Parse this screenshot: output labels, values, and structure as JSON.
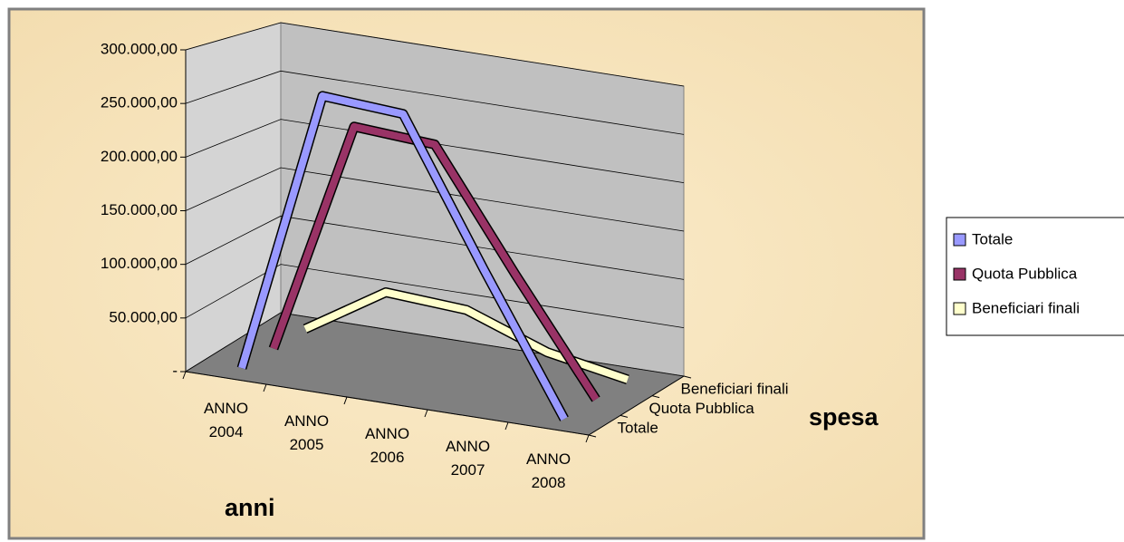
{
  "chart_data": {
    "type": "line3d",
    "x_axis_label": "anni",
    "z_axis_label": "spesa",
    "categories": [
      "ANNO 2004",
      "ANNO 2005",
      "ANNO 2006",
      "ANNO 2007",
      "ANNO 2008"
    ],
    "series": [
      {
        "name": "Totale",
        "color": "#9999ff",
        "values": [
          0,
          270000,
          265000,
          130000,
          0
        ]
      },
      {
        "name": "Quota Pubblica",
        "color": "#993366",
        "values": [
          0,
          230000,
          225000,
          110000,
          0
        ]
      },
      {
        "name": "Beneficiari finali",
        "color": "#ffffcc",
        "values": [
          0,
          50000,
          45000,
          15000,
          0
        ]
      }
    ],
    "ylim": [
      0,
      300000
    ],
    "yticks": [
      {
        "value": 0,
        "label": "-"
      },
      {
        "value": 50000,
        "label": "50.000,00"
      },
      {
        "value": 100000,
        "label": "100.000,00"
      },
      {
        "value": 150000,
        "label": "150.000,00"
      },
      {
        "value": 200000,
        "label": "200.000,00"
      },
      {
        "value": 250000,
        "label": "250.000,00"
      },
      {
        "value": 300000,
        "label": "300.000,00"
      }
    ],
    "grid": true,
    "legend": "right"
  }
}
